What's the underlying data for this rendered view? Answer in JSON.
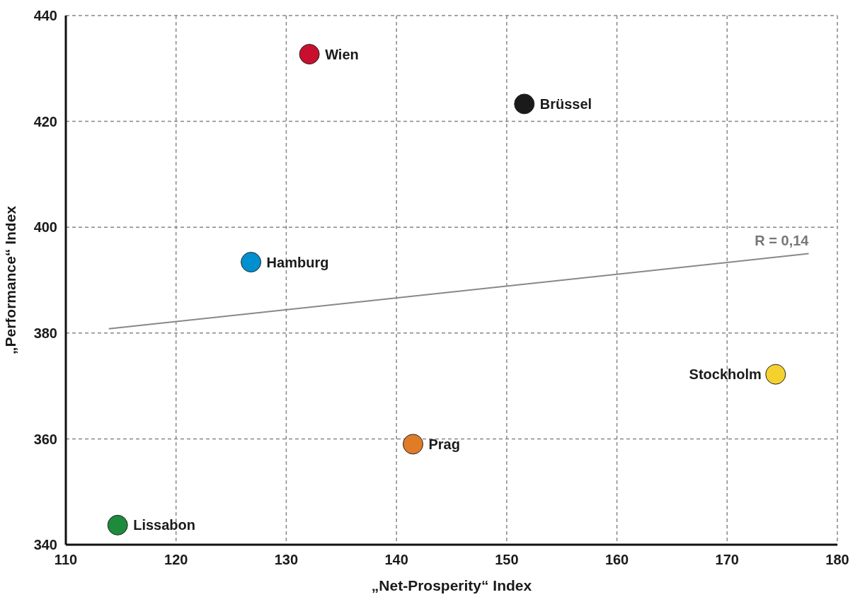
{
  "chart_data": {
    "type": "scatter",
    "xlabel": "„Net-Prosperity“ Index",
    "ylabel": "„Performance“ Index",
    "xlim": [
      110,
      180
    ],
    "xticks": [
      110,
      120,
      130,
      140,
      150,
      160,
      170,
      180
    ],
    "ylim": [
      340,
      440
    ],
    "yticks": [
      340,
      360,
      380,
      400,
      420,
      440
    ],
    "grid": true,
    "legend": false,
    "marker": "circle",
    "series": [
      {
        "name": "Wien",
        "color": "#c8102e",
        "x": [
          132.1
        ],
        "values": [
          432.7
        ]
      },
      {
        "name": "Brüssel",
        "color": "#1a1a1a",
        "x": [
          151.6
        ],
        "values": [
          423.3
        ]
      },
      {
        "name": "Hamburg",
        "color": "#0090d0",
        "x": [
          126.8
        ],
        "values": [
          393.4
        ]
      },
      {
        "name": "Stockholm",
        "color": "#f5d130",
        "x": [
          174.4
        ],
        "values": [
          372.2
        ]
      },
      {
        "name": "Prag",
        "color": "#e07b28",
        "x": [
          141.5
        ],
        "values": [
          359.0
        ]
      },
      {
        "name": "Lissabon",
        "color": "#1e8a3c",
        "x": [
          114.7
        ],
        "values": [
          343.7
        ]
      },
      {
        "type": "line",
        "color": "#888888",
        "x": [
          113.9,
          177.4
        ],
        "values": [
          380.8,
          395.0
        ],
        "line_style": "solid",
        "marker": "none"
      }
    ],
    "annotations": [
      "R = 0,14"
    ]
  }
}
